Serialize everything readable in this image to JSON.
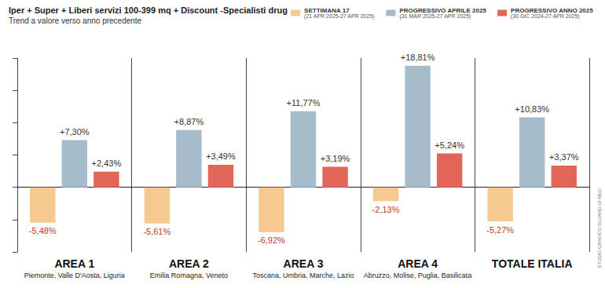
{
  "chart_data": {
    "type": "bar",
    "title": "Iper + Super + Liberi servizi 100-399 mq + Discount -Specialisti drug",
    "subtitle": "Trend a valore verso anno precedente",
    "categories": [
      "AREA 1",
      "AREA 2",
      "AREA 3",
      "AREA 4",
      "TOTALE ITALIA"
    ],
    "regions": [
      "Piemonte, Valle D'Aosta, Liguria",
      "Emilia Romagna, Veneto",
      "Toscana, Umbria, Marche, Lazio",
      "Abruzzo, Molise, Puglia, Basilicata",
      null
    ],
    "series": [
      {
        "name": "SETTIMANA 17",
        "period": "(21 APR 2025-27 APR 2025)",
        "color": "#f5c98f",
        "values": [
          -5.48,
          -5.61,
          -6.92,
          -2.13,
          -5.27
        ],
        "value_labels": [
          "-5,48%",
          "-5,61%",
          "-6,92%",
          "-2,13%",
          "-5,27%"
        ]
      },
      {
        "name": "PROGRESSIVO APRILE 2025",
        "period": "(31 MAR 2025-27 APR 2025)",
        "color": "#a6bccb",
        "values": [
          7.3,
          8.87,
          11.77,
          18.81,
          10.83
        ],
        "value_labels": [
          "+7,30%",
          "+8,87%",
          "+11,77%",
          "+18,81%",
          "+10,83%"
        ]
      },
      {
        "name": "PROGRESSIVO ANNO 2025",
        "period": "(30 DIC 2024-27 APR 2025)",
        "color": "#e2655a",
        "values": [
          2.43,
          3.49,
          3.19,
          5.24,
          3.37
        ],
        "value_labels": [
          "+2,43%",
          "+3,49%",
          "+3,19%",
          "+5,24%",
          "+3,37%"
        ]
      }
    ],
    "ylim": [
      -10,
      20
    ],
    "yticks": [
      -10,
      -5,
      0,
      5,
      10,
      15,
      20
    ],
    "grid": false,
    "tick_labels": "x",
    "data_labels": true,
    "legend": "top-right",
    "credit": "STUDIO GRAFICO SILVANO DI MEO"
  }
}
